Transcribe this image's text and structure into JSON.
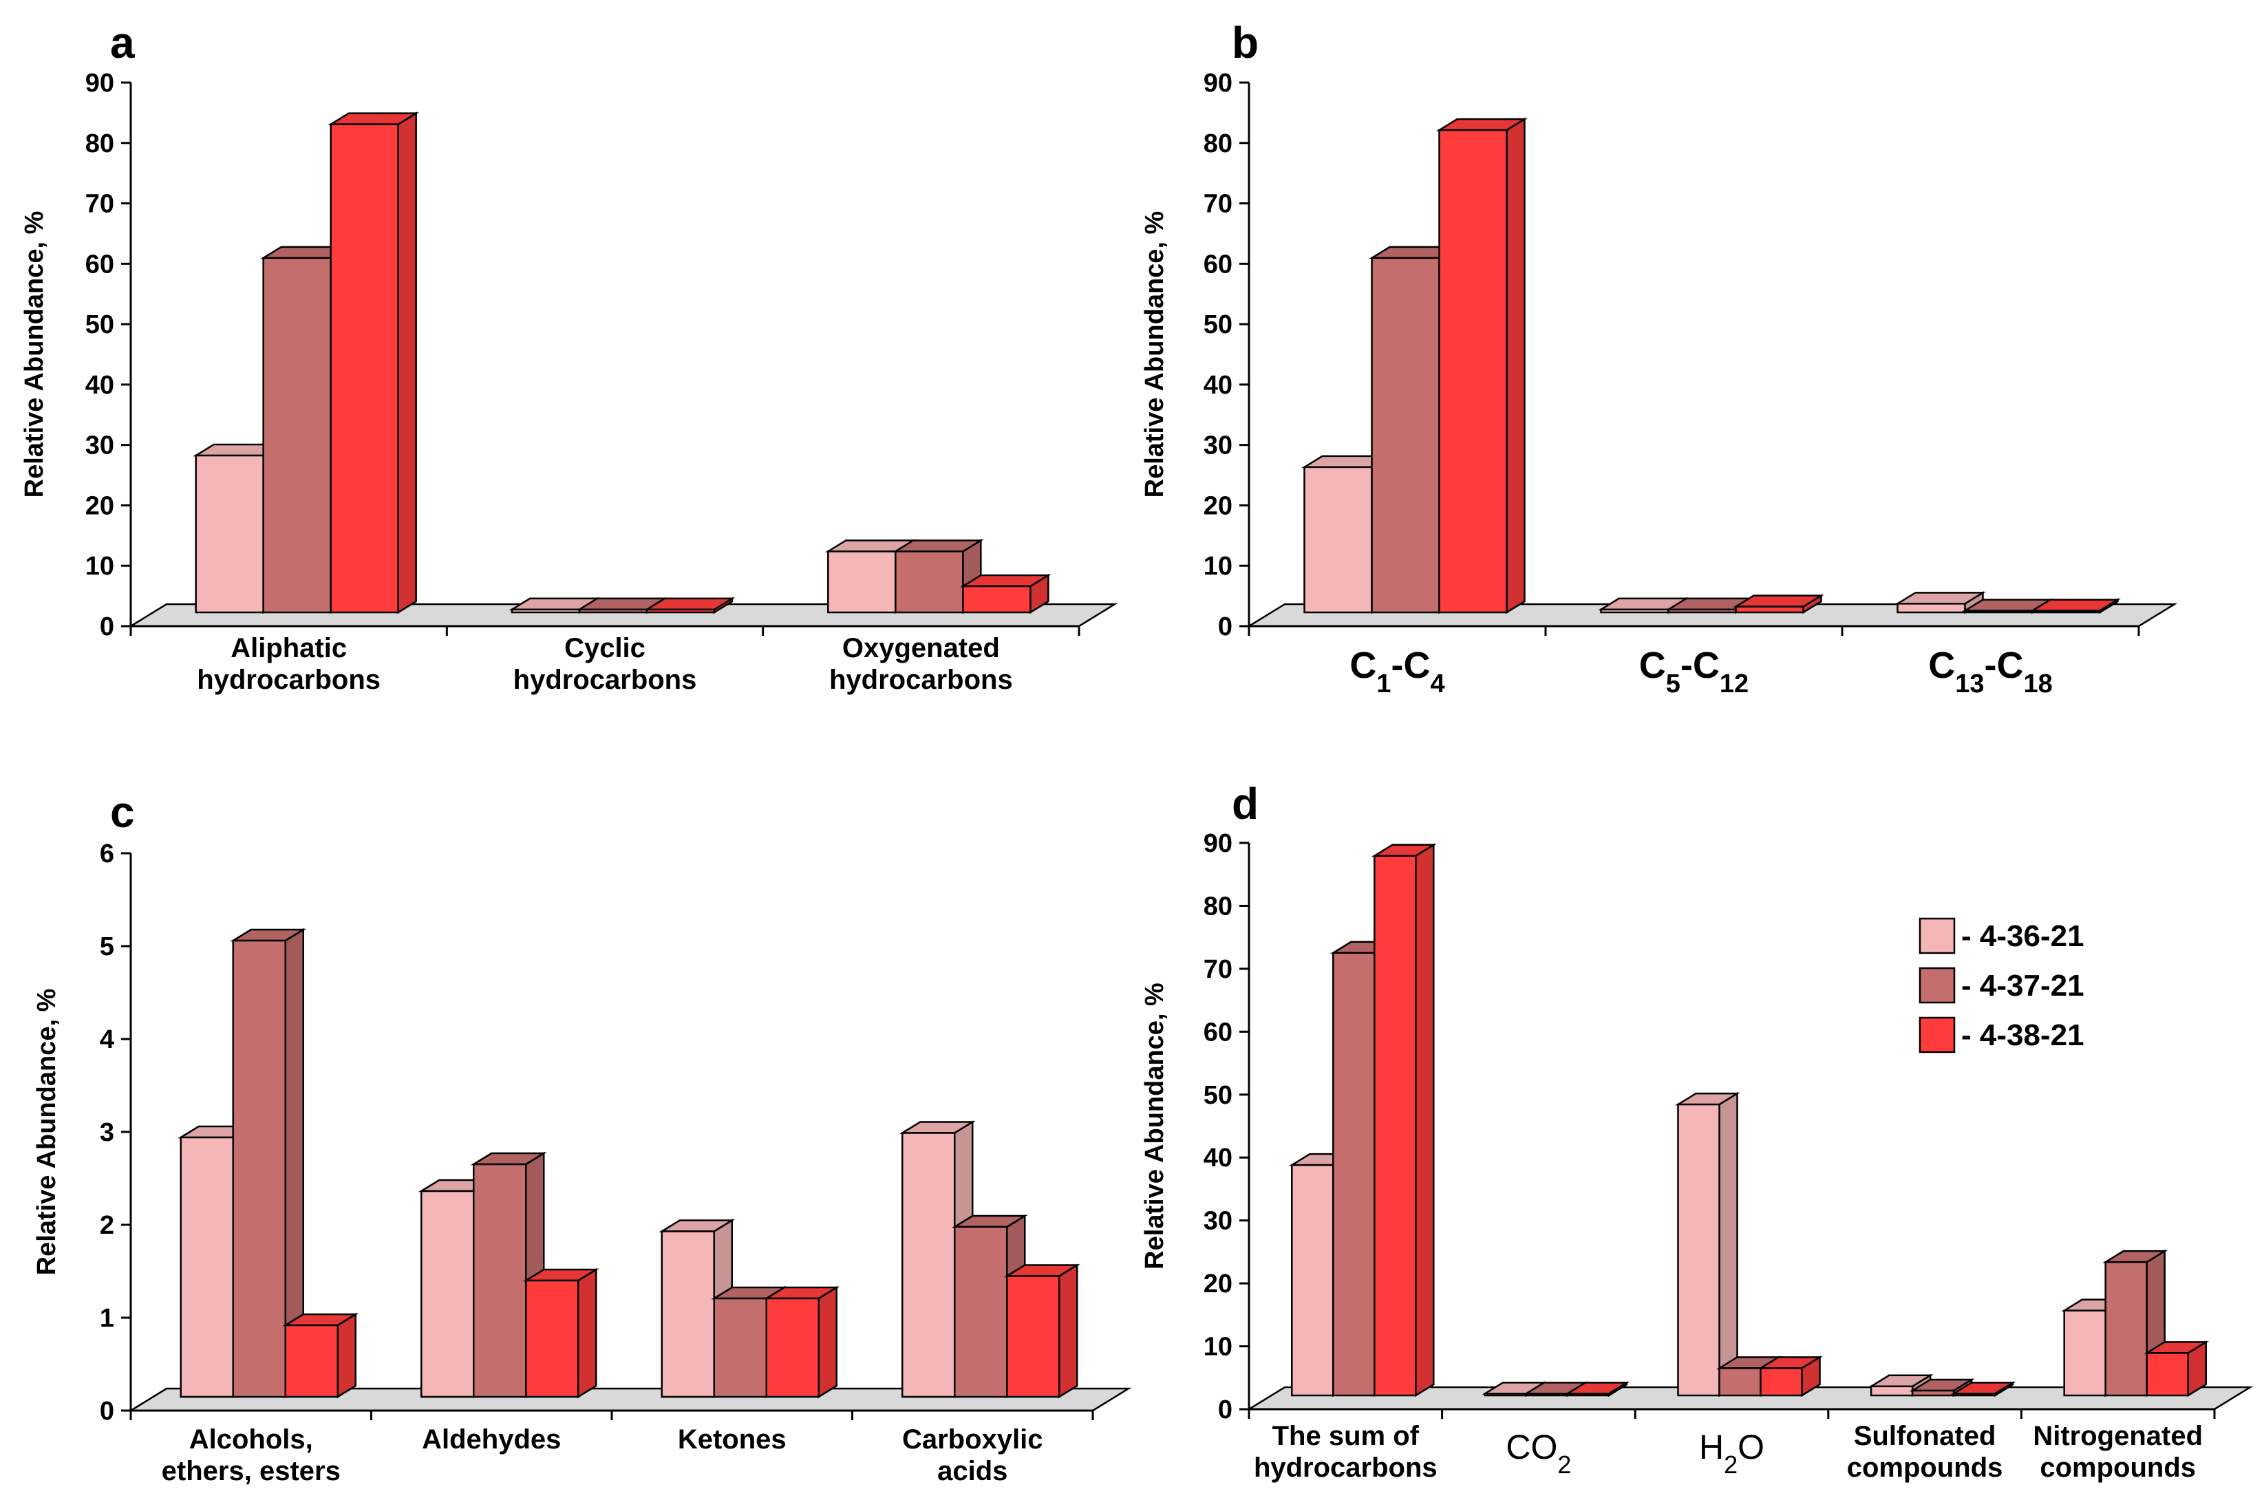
{
  "legend": [
    {
      "label": "- 4-36-21",
      "color": "#f4b6b6"
    },
    {
      "label": "- 4-37-21",
      "color": "#c56e6e"
    },
    {
      "label": "- 4-38-21",
      "color": "#ff3c3c"
    }
  ],
  "chart_data": [
    {
      "panel": "a",
      "type": "bar",
      "ylabel": "Relative Abundance, %",
      "ylim": [
        0,
        90
      ],
      "yticks": [
        "0",
        "10",
        "20",
        "30",
        "40",
        "50",
        "60",
        "70",
        "80",
        "90"
      ],
      "categories": [
        [
          "Aliphatic",
          "hydrocarbons"
        ],
        [
          "Cyclic",
          "hydrocarbons"
        ],
        [
          "Oxygenated",
          "hydrocarbons"
        ]
      ],
      "series": [
        {
          "name": "4-36-21",
          "values": [
            27,
            0.5,
            10.5
          ]
        },
        {
          "name": "4-37-21",
          "values": [
            61,
            0.5,
            10.5
          ]
        },
        {
          "name": "4-38-21",
          "values": [
            84,
            0.5,
            4.5
          ]
        }
      ]
    },
    {
      "panel": "b",
      "type": "bar",
      "ylabel": "Relative Abundance, %",
      "ylim": [
        0,
        90
      ],
      "yticks": [
        "0",
        "10",
        "20",
        "30",
        "40",
        "50",
        "60",
        "70",
        "80",
        "90"
      ],
      "categories": [
        {
          "main": "C",
          "sub1": "1",
          "mid": "-C",
          "sub2": "4"
        },
        {
          "main": "C",
          "sub1": "5",
          "mid": "-C",
          "sub2": "12"
        },
        {
          "main": "C",
          "sub1": "13",
          "mid": "-C",
          "sub2": "18"
        }
      ],
      "series": [
        {
          "name": "4-36-21",
          "values": [
            25,
            0.5,
            1.5
          ]
        },
        {
          "name": "4-37-21",
          "values": [
            61,
            0.5,
            0.3
          ]
        },
        {
          "name": "4-38-21",
          "values": [
            83,
            1.0,
            0.3
          ]
        }
      ]
    },
    {
      "panel": "c",
      "type": "bar",
      "ylabel": "Relative Abundance, %",
      "ylim": [
        0,
        6
      ],
      "yticks": [
        "0",
        "1",
        "2",
        "3",
        "4",
        "5",
        "6"
      ],
      "categories": [
        [
          "Alcohols,",
          "ethers, esters"
        ],
        [
          "Aldehydes"
        ],
        [
          "Ketones"
        ],
        [
          "Carboxylic",
          "acids"
        ]
      ],
      "series": [
        {
          "name": "4-36-21",
          "values": [
            2.9,
            2.3,
            1.85,
            2.95
          ]
        },
        {
          "name": "4-37-21",
          "values": [
            5.1,
            2.6,
            1.1,
            1.9
          ]
        },
        {
          "name": "4-38-21",
          "values": [
            0.8,
            1.3,
            1.1,
            1.35
          ]
        }
      ]
    },
    {
      "panel": "d",
      "type": "bar",
      "ylabel": "Relative Abundance, %",
      "ylim": [
        0,
        90
      ],
      "yticks": [
        "0",
        "10",
        "20",
        "30",
        "40",
        "50",
        "60",
        "70",
        "80",
        "90"
      ],
      "categories": [
        {
          "lines": [
            "The sum of",
            "hydrocarbons"
          ]
        },
        {
          "main": "CO",
          "sub": "2"
        },
        {
          "main": "H",
          "sub": "2",
          "after": "O"
        },
        {
          "lines": [
            "Sulfonated",
            "compounds"
          ]
        },
        {
          "lines": [
            "Nitrogenated",
            "compounds"
          ]
        }
      ],
      "series": [
        {
          "name": "4-36-21",
          "values": [
            38,
            0.3,
            48,
            1.5,
            14
          ]
        },
        {
          "name": "4-37-21",
          "values": [
            73,
            0.3,
            4.5,
            0.8,
            22
          ]
        },
        {
          "name": "4-38-21",
          "values": [
            89,
            0.3,
            4.5,
            0.3,
            7
          ]
        }
      ]
    }
  ]
}
